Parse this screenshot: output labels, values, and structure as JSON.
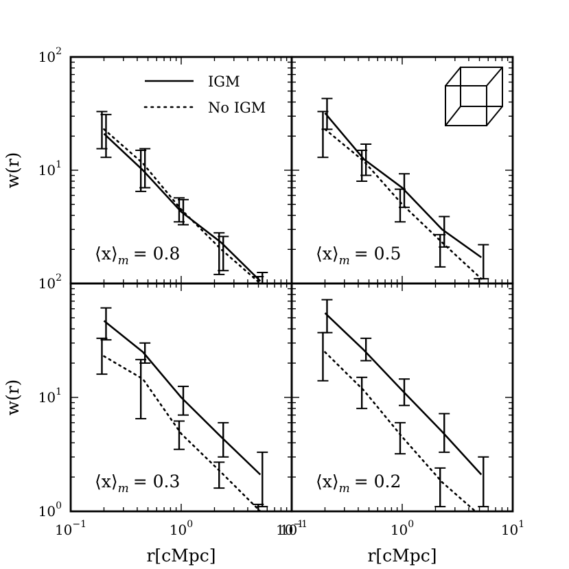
{
  "chart_data": {
    "type": "line",
    "layout": "2x2 panels, shared log axes",
    "xlabel": "r[cMpc]",
    "ylabel": "w(r)",
    "xscale": "log",
    "yscale": "log",
    "xlim": [
      0.1,
      10
    ],
    "xticks": [
      {
        "value": 0.1,
        "base": "10",
        "exp": "−1"
      },
      {
        "value": 1,
        "base": "10",
        "exp": "0"
      },
      {
        "value": 10,
        "base": "10",
        "exp": "1"
      }
    ],
    "yticks_printed": {
      "top_row": [
        {
          "base": "10",
          "exp": "2"
        },
        {
          "base": "10",
          "exp": "1"
        }
      ],
      "bottom_row": [
        {
          "base": "10",
          "exp": "2"
        },
        {
          "base": "10",
          "exp": "1"
        },
        {
          "base": "10",
          "exp": "0"
        }
      ]
    },
    "legend": {
      "position": "top-left panel, upper center",
      "entries": [
        {
          "label": "IGM",
          "style": "solid"
        },
        {
          "label": "No IGM",
          "style": "dotted"
        }
      ]
    },
    "inset_icon": "cube-wireframe-icon",
    "panels": [
      {
        "label_prefix": "⟨x⟩",
        "label_sub": "m",
        "label_value": "= 0.8",
        "ylim": [
          1,
          100
        ],
        "series": [
          {
            "name": "IGM",
            "style": "solid",
            "x": [
              0.2,
              0.45,
              1.0,
              2.3,
              5.2
            ],
            "y": [
              21,
              10,
              4.3,
              2.3,
              1.05
            ],
            "err": [
              [
                13,
                31
              ],
              [
                7,
                15.5
              ],
              [
                3.3,
                5.5
              ],
              [
                1.3,
                2.6
              ],
              [
                0.9,
                1.25
              ]
            ]
          },
          {
            "name": "No IGM",
            "style": "dotted",
            "x": [
              0.2,
              0.45,
              1.0,
              2.3,
              5.2
            ],
            "y": [
              23,
              11.5,
              4.5,
              2.0,
              1.0
            ],
            "err": [
              [
                15.5,
                33
              ],
              [
                6.5,
                15
              ],
              [
                3.5,
                5.7
              ],
              [
                1.2,
                2.8
              ],
              [
                0.9,
                1.15
              ]
            ]
          }
        ]
      },
      {
        "label_prefix": "⟨x⟩",
        "label_sub": "m",
        "label_value": "= 0.5",
        "ylim": [
          1,
          100
        ],
        "series": [
          {
            "name": "IGM",
            "style": "solid",
            "x": [
              0.2,
              0.45,
              1.0,
              2.3,
              5.2
            ],
            "y": [
              32,
              12.5,
              7,
              3.0,
              1.7
            ],
            "err": [
              [
                23,
                43
              ],
              [
                9,
                17
              ],
              [
                4.7,
                9.3
              ],
              [
                2.1,
                3.9
              ],
              [
                1.1,
                2.2
              ]
            ]
          },
          {
            "name": "No IGM",
            "style": "dotted",
            "x": [
              0.2,
              0.45,
              1.0,
              2.3,
              5.2
            ],
            "y": [
              23,
              12,
              5,
              2.3,
              1.1
            ],
            "err": [
              [
                13,
                33
              ],
              [
                8,
                15
              ],
              [
                3.5,
                6.8
              ],
              [
                1.4,
                2.7
              ],
              [
                0.95,
                1.1
              ]
            ]
          }
        ]
      },
      {
        "label_prefix": "⟨x⟩",
        "label_sub": "m",
        "label_value": "= 0.3",
        "ylim": [
          1,
          100
        ],
        "series": [
          {
            "name": "IGM",
            "style": "solid",
            "x": [
              0.2,
              0.45,
              1.0,
              2.3,
              5.2
            ],
            "y": [
              47,
              25,
              10,
              4.5,
              2.1
            ],
            "err": [
              [
                32,
                61
              ],
              [
                20,
                30
              ],
              [
                7,
                12.5
              ],
              [
                3.0,
                6.0
              ],
              [
                1.1,
                3.3
              ]
            ]
          },
          {
            "name": "No IGM",
            "style": "dotted",
            "x": [
              0.2,
              0.45,
              1.0,
              2.3,
              5.2
            ],
            "y": [
              23,
              14.5,
              4.8,
              2.2,
              1.0
            ],
            "err": [
              [
                16,
                33
              ],
              [
                6.5,
                21.5
              ],
              [
                3.5,
                6.2
              ],
              [
                1.6,
                2.7
              ],
              [
                0.9,
                1.15
              ]
            ]
          }
        ]
      },
      {
        "label_prefix": "⟨x⟩",
        "label_sub": "m",
        "label_value": "= 0.2",
        "ylim": [
          1,
          100
        ],
        "series": [
          {
            "name": "IGM",
            "style": "solid",
            "x": [
              0.2,
              0.45,
              1.0,
              2.3,
              5.2
            ],
            "y": [
              55,
              26,
              11.5,
              5,
              2.1
            ],
            "err": [
              [
                37,
                72
              ],
              [
                21,
                33
              ],
              [
                8.5,
                14.5
              ],
              [
                3.3,
                7.2
              ],
              [
                1.1,
                3.0
              ]
            ]
          },
          {
            "name": "No IGM",
            "style": "dotted",
            "x": [
              0.2,
              0.45,
              1.0,
              2.3,
              5.2
            ],
            "y": [
              25,
              11.5,
              4.5,
              1.8,
              0.9
            ],
            "err": [
              [
                14,
                37
              ],
              [
                8,
                15
              ],
              [
                3.2,
                6.0
              ],
              [
                1.1,
                2.4
              ],
              [
                0.9,
                1.0
              ]
            ]
          }
        ]
      }
    ]
  }
}
